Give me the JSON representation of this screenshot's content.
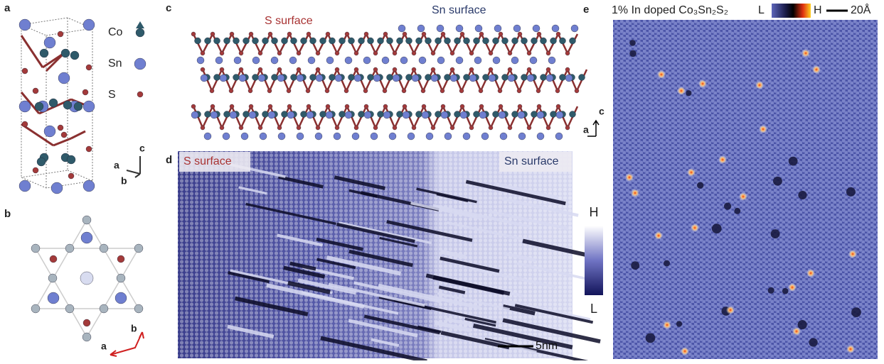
{
  "panels": {
    "a": {
      "label": "a",
      "legend": [
        "Co",
        "Sn",
        "S"
      ],
      "axes": [
        "c",
        "a",
        "b"
      ]
    },
    "b": {
      "label": "b",
      "axes": [
        "b",
        "a"
      ]
    },
    "c": {
      "label": "c",
      "s_surface": "S surface",
      "sn_surface": "Sn surface"
    },
    "d": {
      "label": "d",
      "s_surface": "S surface",
      "sn_surface": "Sn surface",
      "colorbar_high": "H",
      "colorbar_low": "L",
      "scale_bar": "5nm"
    },
    "e": {
      "label": "e",
      "title": "1% In doped Co₃Sn₂S₂",
      "colorbar_low": "L",
      "colorbar_high": "H",
      "scale_bar": "20Å",
      "axes": [
        "c",
        "a"
      ]
    }
  }
}
